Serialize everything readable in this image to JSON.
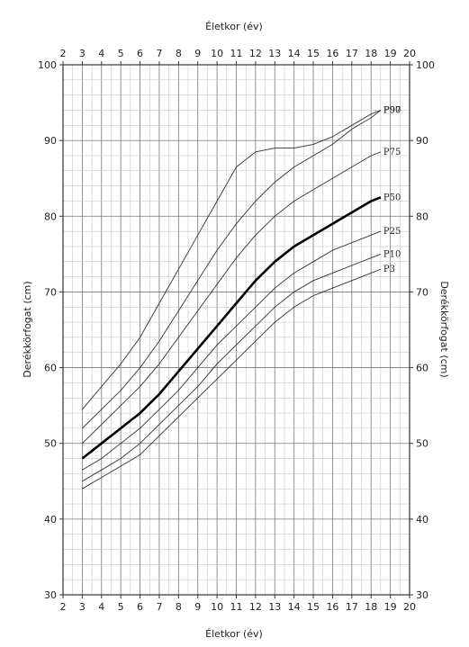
{
  "chart_data": {
    "type": "line",
    "xlabel_top": "Életkor (év)",
    "xlabel_bottom": "Életkor (év)",
    "ylabel_left": "Derékkörfogat (cm)",
    "ylabel_right": "Derékkörfogat (cm)",
    "xlim": [
      2,
      20
    ],
    "ylim": [
      30,
      100
    ],
    "x_ticks": [
      2,
      3,
      4,
      5,
      6,
      7,
      8,
      9,
      10,
      11,
      12,
      13,
      14,
      15,
      16,
      17,
      18,
      19,
      20
    ],
    "y_ticks": [
      30,
      40,
      50,
      60,
      70,
      80,
      90,
      100
    ],
    "grid": true,
    "x": [
      3,
      4,
      5,
      6,
      7,
      8,
      9,
      10,
      11,
      12,
      13,
      14,
      15,
      16,
      17,
      18,
      18.5
    ],
    "series": [
      {
        "name": "P97",
        "values": [
          54.5,
          57.5,
          60.5,
          64,
          68.5,
          73,
          77.5,
          82,
          86.5,
          88.5,
          89,
          89,
          89.5,
          90.5,
          92,
          93.5,
          94
        ]
      },
      {
        "name": "P90",
        "values": [
          52,
          54.5,
          57,
          60,
          63.5,
          67.5,
          71.5,
          75.5,
          79,
          82,
          84.5,
          86.5,
          88,
          89.5,
          91.5,
          93,
          94
        ]
      },
      {
        "name": "P75",
        "values": [
          50,
          52.5,
          55,
          57.5,
          60.5,
          64,
          67.5,
          71,
          74.5,
          77.5,
          80,
          82,
          83.5,
          85,
          86.5,
          88,
          88.5
        ]
      },
      {
        "name": "P50",
        "values": [
          48,
          50,
          52,
          54,
          56.5,
          59.5,
          62.5,
          65.5,
          68.5,
          71.5,
          74,
          76,
          77.5,
          79,
          80.5,
          82,
          82.5
        ]
      },
      {
        "name": "P25",
        "values": [
          46.5,
          48,
          50,
          52,
          54.5,
          57,
          60,
          63,
          65.5,
          68,
          70.5,
          72.5,
          74,
          75.5,
          76.5,
          77.5,
          78
        ]
      },
      {
        "name": "P10",
        "values": [
          45,
          46.5,
          48,
          50,
          52.5,
          55,
          57.5,
          60.5,
          63,
          65.5,
          68,
          70,
          71.5,
          72.5,
          73.5,
          74.5,
          75
        ]
      },
      {
        "name": "P3",
        "values": [
          44,
          45.5,
          47,
          48.5,
          51,
          53.5,
          56,
          58.5,
          61,
          63.5,
          66,
          68,
          69.5,
          70.5,
          71.5,
          72.5,
          73
        ]
      }
    ],
    "colors": {
      "line": "#333333",
      "median": "#000000",
      "grid_minor": "#bbbbbb",
      "grid_major": "#777777",
      "frame": "#333333"
    }
  }
}
